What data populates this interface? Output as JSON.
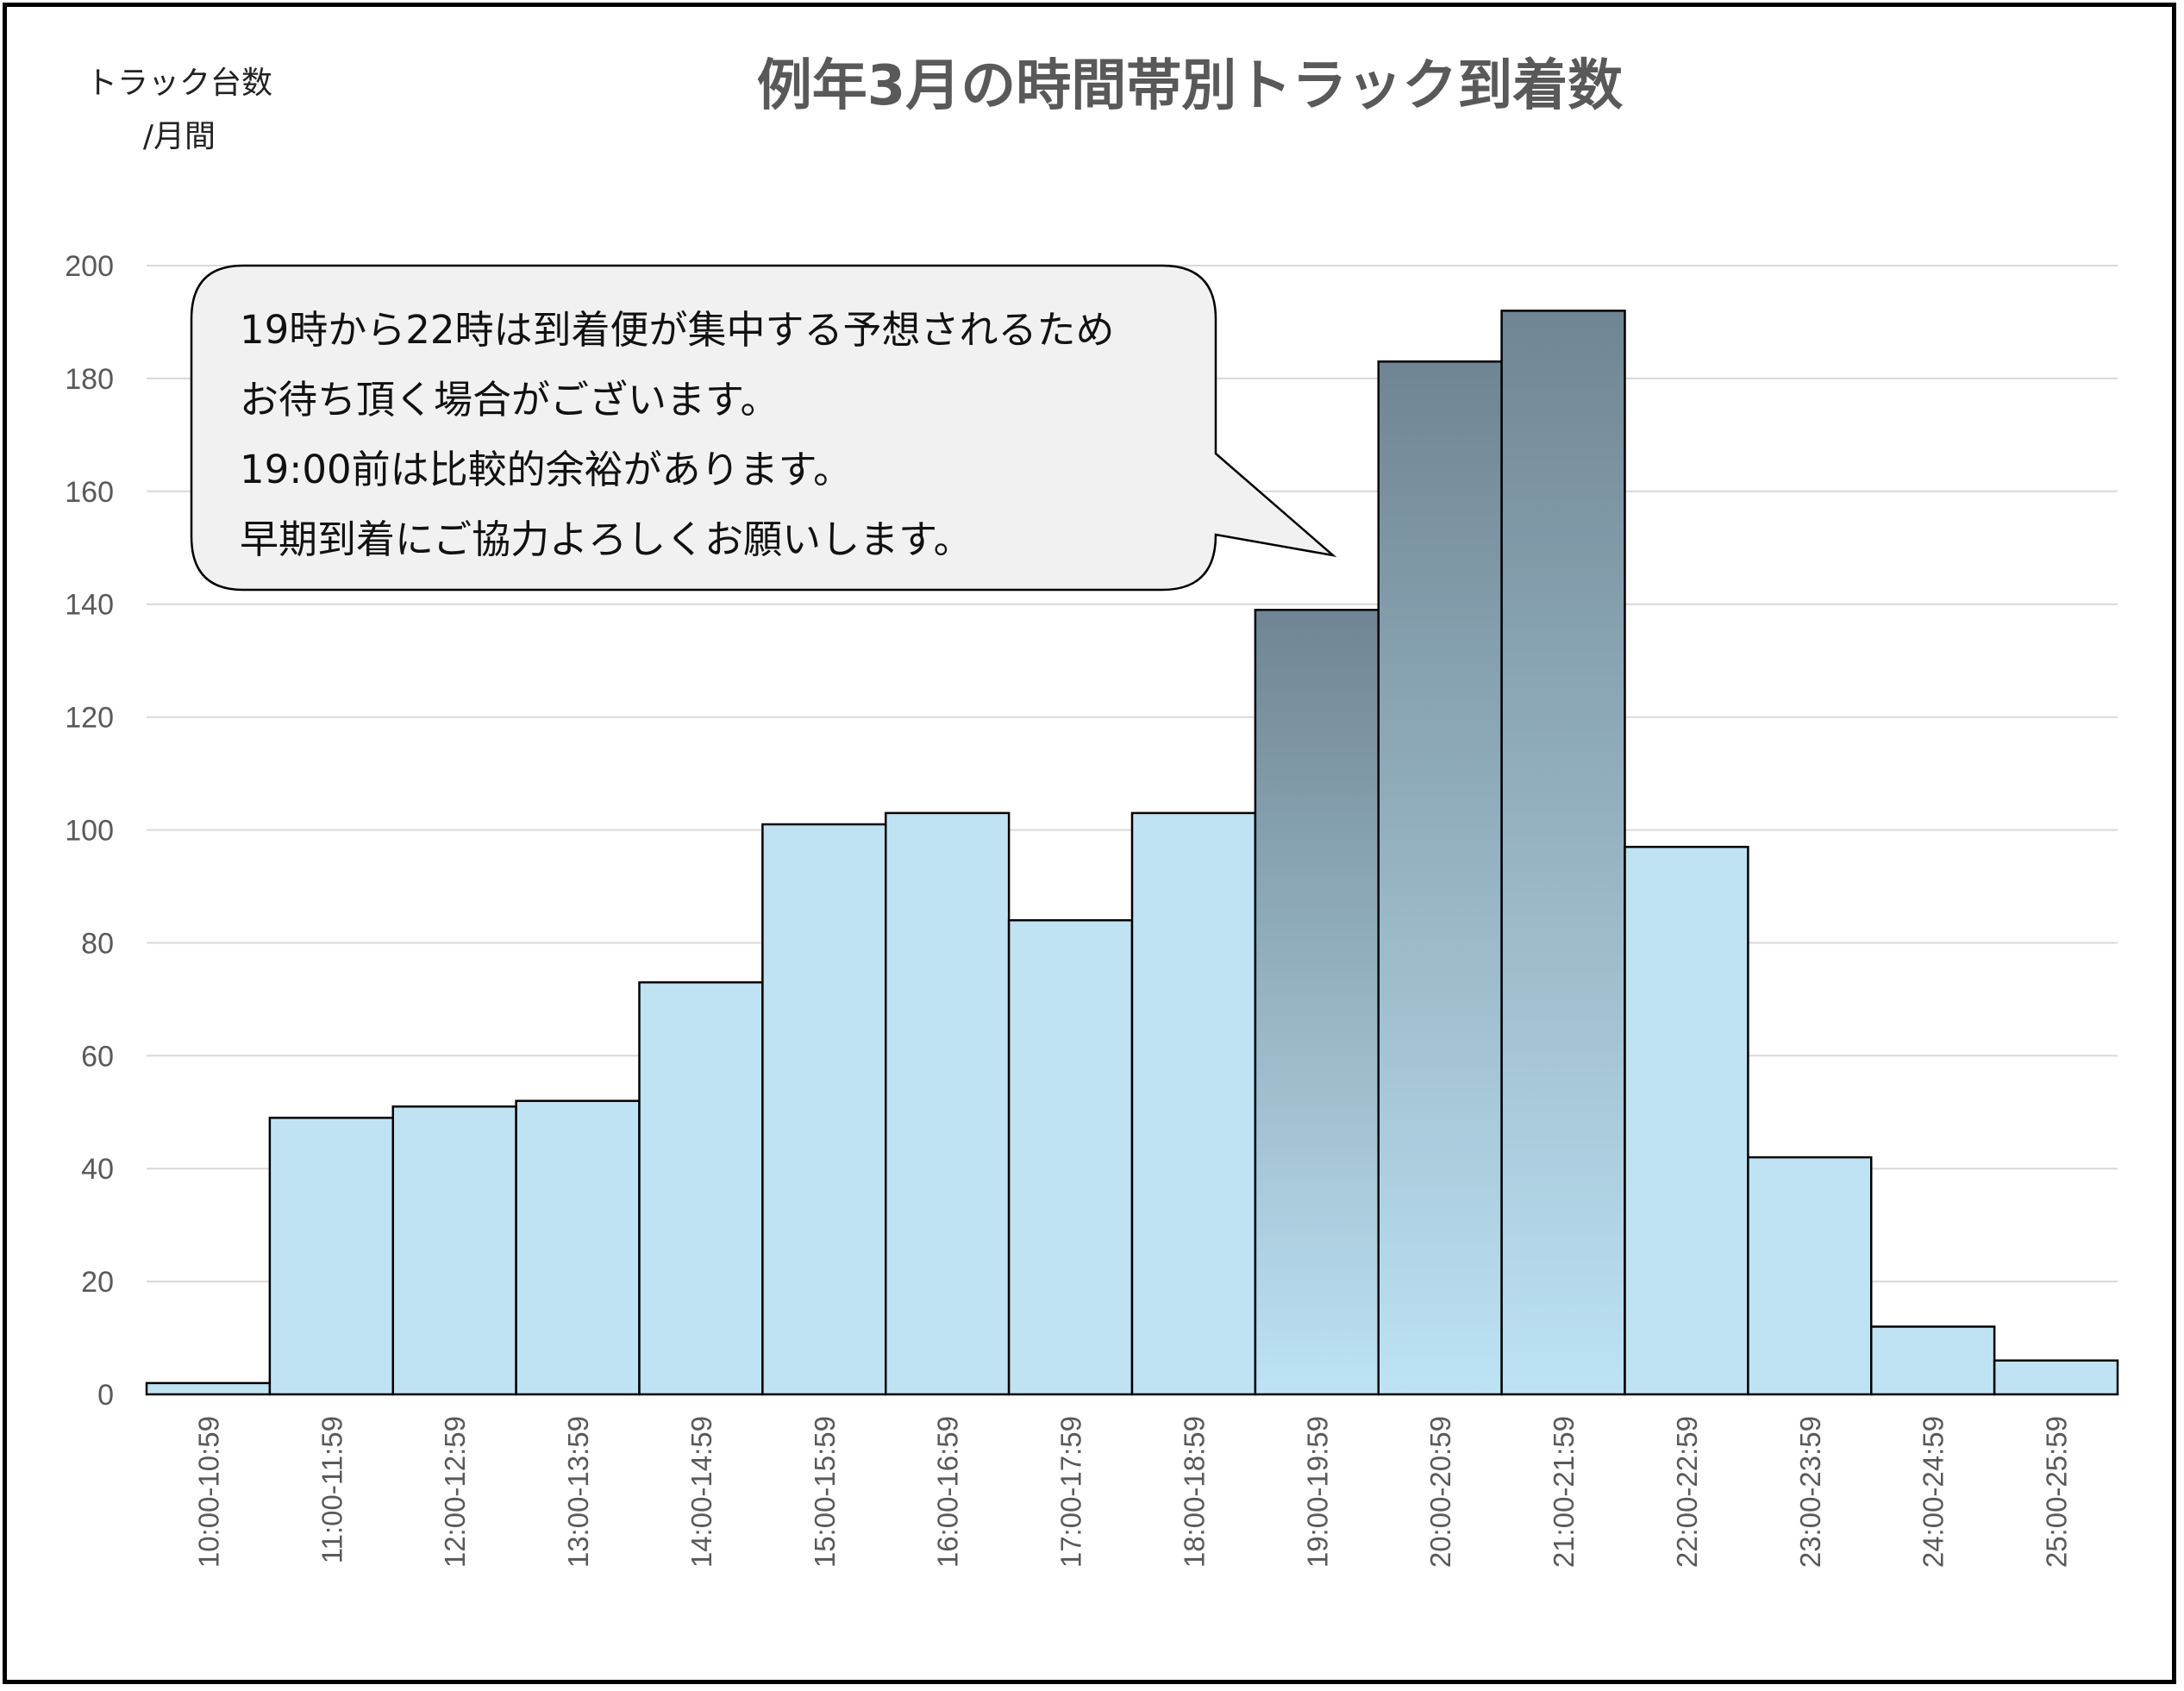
{
  "chart_data": {
    "type": "bar",
    "title": "例年3月の時間帯別トラック到着数",
    "ylabel_line1": "トラック台数",
    "ylabel_line2": "/月間",
    "xlabel": "",
    "ylim": [
      0,
      200
    ],
    "yticks": [
      0,
      20,
      40,
      60,
      80,
      100,
      120,
      140,
      160,
      180,
      200
    ],
    "grid": true,
    "categories": [
      "10:00-10:59",
      "11:00-11:59",
      "12:00-12:59",
      "13:00-13:59",
      "14:00-14:59",
      "15:00-15:59",
      "16:00-16:59",
      "17:00-17:59",
      "18:00-18:59",
      "19:00-19:59",
      "20:00-20:59",
      "21:00-21:59",
      "22:00-22:59",
      "23:00-23:59",
      "24:00-24:59",
      "25:00-25:59"
    ],
    "values": [
      2,
      49,
      51,
      52,
      73,
      101,
      103,
      84,
      103,
      139,
      183,
      192,
      97,
      42,
      12,
      6
    ],
    "highlighted_categories": [
      "19:00-19:59",
      "20:00-20:59",
      "21:00-21:59"
    ],
    "colors": {
      "bar_fill": "#c0e3f4",
      "highlight_top": "#6f8593",
      "highlight_bottom": "#bde3f5",
      "bar_stroke": "#000000",
      "grid": "#d9d9d9",
      "tick_text": "#595959"
    }
  },
  "callout": {
    "lines": [
      "19時から22時は到着便が集中する予想されるため",
      "お待ち頂く場合がございます。",
      "19:00前は比較的余裕があります。",
      "早期到着にご協力よろしくお願いします。"
    ],
    "fill": "#f1f1f1"
  }
}
